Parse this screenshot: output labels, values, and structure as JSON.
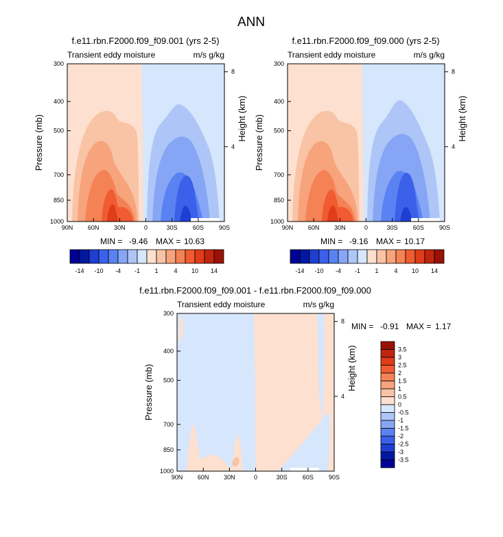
{
  "page_title": "ANN",
  "colors": {
    "neg": [
      "#000096",
      "#0019a0",
      "#1f3fd2",
      "#3b60ea",
      "#5a82f2",
      "#86a6f5",
      "#aec6f7",
      "#d6e6fc"
    ],
    "pos": [
      "#fde0cf",
      "#f9c3a5",
      "#f7a37c",
      "#f48255",
      "#f05b31",
      "#df3c1a",
      "#c02510",
      "#9a1108",
      "#7a0000"
    ]
  },
  "chart_data": [
    {
      "type": "contour",
      "title": "f.e11.rbn.F2000.f09_f09.001 (yrs 2-5)",
      "left_label": "Transient eddy moisture",
      "right_label": "m/s g/kg",
      "ylabel": "Pressure (mb)",
      "y2label": "Height (km)",
      "x_ticks": [
        "90N",
        "60N",
        "30N",
        "0",
        "30S",
        "60S",
        "90S"
      ],
      "x_values": [
        90,
        60,
        30,
        0,
        -30,
        -60,
        -90
      ],
      "y_ticks": [
        300,
        400,
        500,
        700,
        850,
        1000
      ],
      "y2_ticks": [
        8,
        4
      ],
      "ylim": [
        300,
        1000
      ],
      "y_scale": "log",
      "stats": {
        "min_label": "MIN =",
        "min": "-9.46",
        "max_label": "MAX =",
        "max": "10.63"
      }
    },
    {
      "type": "contour",
      "title": "f.e11.rbn.F2000.f09_f09.000 (yrs 2-5)",
      "left_label": "Transient eddy moisture",
      "right_label": "m/s g/kg",
      "ylabel": "Pressure (mb)",
      "y2label": "Height (km)",
      "x_ticks": [
        "90N",
        "60N",
        "30N",
        "0",
        "30S",
        "60S",
        "90S"
      ],
      "x_values": [
        90,
        60,
        30,
        0,
        -30,
        -60,
        -90
      ],
      "y_ticks": [
        300,
        400,
        500,
        700,
        850,
        1000
      ],
      "y2_ticks": [
        8,
        4
      ],
      "ylim": [
        300,
        1000
      ],
      "y_scale": "log",
      "stats": {
        "min_label": "MIN =",
        "min": "-9.16",
        "max_label": "MAX =",
        "max": "10.17"
      }
    },
    {
      "type": "contour",
      "title": "f.e11.rbn.F2000.f09_f09.001 - f.e11.rbn.F2000.f09_f09.000",
      "left_label": "Transient eddy moisture",
      "right_label": "m/s g/kg",
      "ylabel": "Pressure (mb)",
      "y2label": "Height (km)",
      "x_ticks": [
        "90N",
        "60N",
        "30N",
        "0",
        "30S",
        "60S",
        "90S"
      ],
      "x_values": [
        90,
        60,
        30,
        0,
        -30,
        -60,
        -90
      ],
      "y_ticks": [
        300,
        400,
        500,
        700,
        850,
        1000
      ],
      "y2_ticks": [
        8,
        4
      ],
      "ylim": [
        300,
        1000
      ],
      "y_scale": "log",
      "stats": {
        "min_label": "MIN =",
        "min": "-0.91",
        "max_label": "MAX =",
        "max": "1.17"
      }
    }
  ],
  "colorbar_top": {
    "labels": [
      "-14",
      "-10",
      "-4",
      "-1",
      "1",
      "4",
      "10",
      "14"
    ],
    "orientation": "horizontal"
  },
  "colorbar_diff": {
    "labels": [
      "3.5",
      "3",
      "2.5",
      "2",
      "1.5",
      "1",
      "0.5",
      "0",
      "-0.5",
      "-1",
      "-1.5",
      "-2",
      "-2.5",
      "-3",
      "-3.5"
    ],
    "orientation": "vertical"
  }
}
